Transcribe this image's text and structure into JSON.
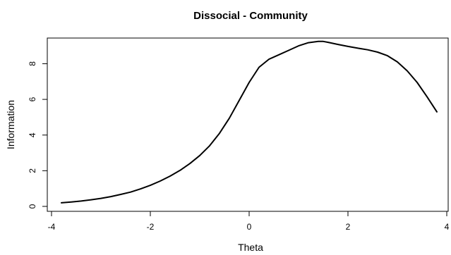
{
  "chart_data": {
    "type": "line",
    "title": "Dissocial - Community",
    "xlabel": "Theta",
    "ylabel": "Information",
    "xlim": [
      -4,
      4
    ],
    "ylim": [
      0,
      9.4
    ],
    "xticks": [
      "-4",
      "-2",
      "0",
      "2",
      "4"
    ],
    "yticks": [
      "0",
      "2",
      "4",
      "6",
      "8"
    ],
    "grid": false,
    "legend": "none",
    "line_color": "#000000",
    "series": [
      {
        "x": [
          -3.8,
          -3.6,
          -3.4,
          -3.2,
          -3.0,
          -2.8,
          -2.6,
          -2.4,
          -2.2,
          -2.0,
          -1.8,
          -1.6,
          -1.4,
          -1.2,
          -1.0,
          -0.8,
          -0.6,
          -0.4,
          -0.2,
          0.0,
          0.2,
          0.4,
          0.6,
          0.8,
          1.0,
          1.2,
          1.4,
          1.5,
          1.6,
          1.8,
          2.0,
          2.2,
          2.4,
          2.6,
          2.8,
          3.0,
          3.2,
          3.4,
          3.6,
          3.8
        ],
        "y": [
          0.2,
          0.25,
          0.3,
          0.37,
          0.45,
          0.55,
          0.67,
          0.8,
          0.98,
          1.18,
          1.42,
          1.7,
          2.02,
          2.4,
          2.85,
          3.4,
          4.1,
          4.95,
          5.95,
          6.95,
          7.8,
          8.25,
          8.5,
          8.75,
          9.0,
          9.18,
          9.25,
          9.25,
          9.2,
          9.08,
          8.97,
          8.87,
          8.78,
          8.65,
          8.45,
          8.1,
          7.6,
          6.95,
          6.15,
          5.3
        ]
      }
    ]
  }
}
